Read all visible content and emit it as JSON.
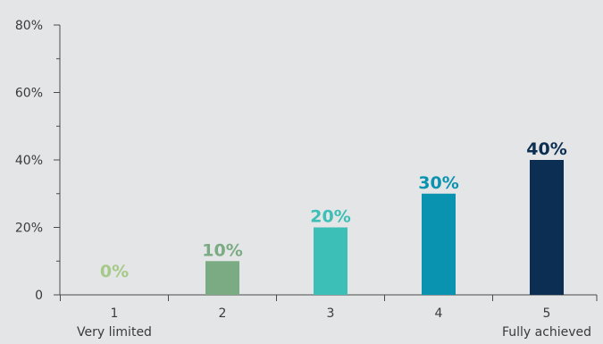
{
  "chart_data": {
    "type": "bar",
    "categories": [
      "1",
      "2",
      "3",
      "4",
      "5"
    ],
    "category_sublabels": [
      "Very limited",
      "",
      "",
      "",
      "Fully achieved"
    ],
    "values": [
      0,
      10,
      20,
      30,
      40
    ],
    "data_labels": [
      "0%",
      "10%",
      "20%",
      "30%",
      "40%"
    ],
    "bar_colors": [
      "#9dc48a",
      "#7aab82",
      "#3bbfb6",
      "#0a93b0",
      "#0c2e52"
    ],
    "label_colors": [
      "#a6c98a",
      "#7aab82",
      "#3bbfb6",
      "#0a93b0",
      "#0c2e52"
    ],
    "y_ticks": [
      0,
      20,
      40,
      60,
      80
    ],
    "y_tick_labels": [
      "0",
      "20%",
      "40%",
      "60%",
      "80%"
    ],
    "ylim": [
      0,
      80
    ],
    "grid": false,
    "legend": false,
    "title": "",
    "xlabel": "",
    "ylabel": ""
  },
  "colors": {
    "background": "#e4e5e6",
    "axis": "#4a4a4a",
    "text": "#3a3a3a"
  }
}
